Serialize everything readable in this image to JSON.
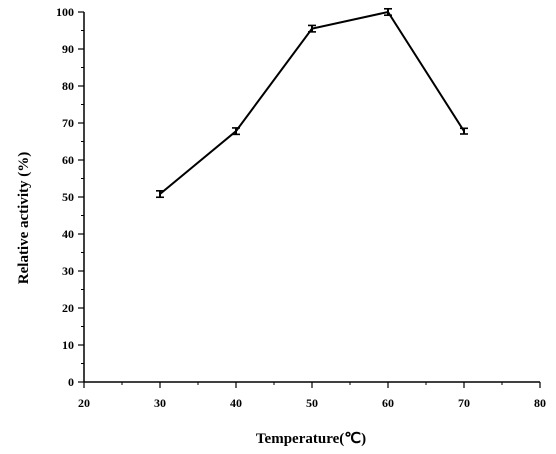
{
  "chart_data": {
    "type": "line",
    "title": "",
    "xlabel": "Temperature(℃)",
    "ylabel": "Relative activity (%)",
    "xlim": [
      20,
      80
    ],
    "ylim": [
      0,
      100
    ],
    "x_ticks": [
      20,
      30,
      40,
      50,
      60,
      70,
      80
    ],
    "y_ticks": [
      0,
      10,
      20,
      30,
      40,
      50,
      60,
      70,
      80,
      90,
      100
    ],
    "grid": false,
    "legend": "none",
    "series": [
      {
        "x": [
          30,
          40,
          50,
          60,
          70
        ],
        "y": [
          50.8,
          67.8,
          95.5,
          100,
          67.8
        ],
        "error": [
          0.6,
          0.6,
          0.6,
          0.6,
          0.5
        ],
        "color": "#000000",
        "marker": "error-bar"
      }
    ]
  }
}
